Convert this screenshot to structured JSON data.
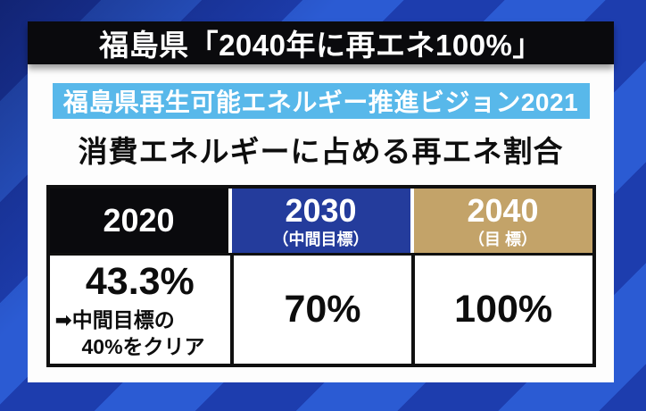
{
  "header": {
    "title": "福島県「2040年に再エネ100%」"
  },
  "vision_banner": {
    "label": "福島県再生可能エネルギー推進ビジョン2021"
  },
  "table": {
    "title": "消費エネルギーに占める再エネ割合",
    "columns": [
      {
        "year": "2020",
        "sublabel": "",
        "value": "43.3%",
        "note_line1": "➡中間目標の",
        "note_line2": "40%をクリア"
      },
      {
        "year": "2030",
        "sublabel": "（中間目標）",
        "value": "70%"
      },
      {
        "year": "2040",
        "sublabel": "（目 標）",
        "value": "100%"
      }
    ]
  },
  "colors": {
    "bg_stripe_dark": "#1d3dae",
    "bg_stripe_light": "#2b5bd3",
    "headline_banner_bg": "#0a0a0d",
    "vision_banner_bg": "#58b8ea",
    "header_2020_bg": "#0a0a0d",
    "header_2030_bg": "#243c9c",
    "header_2040_bg": "#c3a369",
    "table_border": "#101010",
    "text_on_dark": "#ffffff",
    "text_on_light": "#0d0d0d"
  },
  "chart_data": {
    "type": "table",
    "title": "消費エネルギーに占める再エネ割合",
    "subtitle": "福島県再生可能エネルギー推進ビジョン2021",
    "headline": "福島県「2040年に再エネ100%」",
    "columns": [
      "2020",
      "2030（中間目標）",
      "2040（目 標）"
    ],
    "values_percent": [
      43.3,
      70,
      100
    ],
    "values_label": [
      "43.3%",
      "70%",
      "100%"
    ],
    "annotations": [
      "➡中間目標の40%をクリア",
      "",
      ""
    ]
  }
}
